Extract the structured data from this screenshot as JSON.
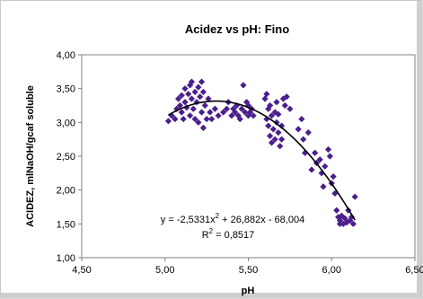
{
  "chart_data": {
    "type": "scatter",
    "title": "Acidez vs pH: Fino",
    "xlabel": "pH",
    "ylabel": "ACIDEZ, mlNaOH/gcaf soluble",
    "xlim": [
      4.5,
      6.5
    ],
    "ylim": [
      1.0,
      4.0
    ],
    "x_ticks": [
      "4,50",
      "5,00",
      "5,50",
      "6,00",
      "6,50"
    ],
    "y_ticks": [
      "1,00",
      "1,50",
      "2,00",
      "2,50",
      "3,00",
      "3,50",
      "4,00"
    ],
    "grid": false,
    "marker_color": "#4b1f8c",
    "trend_color": "#000000",
    "trendline": {
      "type": "polynomial",
      "coefficients": [
        -2.5331,
        26.882,
        -68.004
      ],
      "equation_prefix": "y = -2,5331x",
      "equation_suffix": " + 26,882x - 68,004",
      "exponent": "2",
      "r2_prefix": "R",
      "r2_suffix": " = 0,8517"
    },
    "points": [
      [
        5.02,
        3.02
      ],
      [
        5.04,
        3.1
      ],
      [
        5.06,
        3.05
      ],
      [
        5.07,
        3.2
      ],
      [
        5.08,
        3.35
      ],
      [
        5.09,
        3.25
      ],
      [
        5.1,
        3.4
      ],
      [
        5.1,
        3.15
      ],
      [
        5.11,
        3.05
      ],
      [
        5.12,
        3.3
      ],
      [
        5.12,
        3.5
      ],
      [
        5.13,
        3.22
      ],
      [
        5.14,
        3.42
      ],
      [
        5.15,
        3.1
      ],
      [
        5.15,
        3.55
      ],
      [
        5.16,
        3.35
      ],
      [
        5.16,
        3.6
      ],
      [
        5.17,
        3.2
      ],
      [
        5.18,
        3.45
      ],
      [
        5.18,
        3.05
      ],
      [
        5.19,
        3.3
      ],
      [
        5.2,
        3.0
      ],
      [
        5.2,
        3.52
      ],
      [
        5.21,
        3.38
      ],
      [
        5.22,
        3.15
      ],
      [
        5.22,
        3.6
      ],
      [
        5.23,
        3.45
      ],
      [
        5.23,
        2.92
      ],
      [
        5.24,
        3.25
      ],
      [
        5.25,
        3.05
      ],
      [
        5.26,
        3.35
      ],
      [
        5.27,
        3.15
      ],
      [
        5.28,
        3.05
      ],
      [
        5.3,
        3.2
      ],
      [
        5.32,
        3.1
      ],
      [
        5.35,
        3.15
      ],
      [
        5.37,
        3.2
      ],
      [
        5.38,
        3.3
      ],
      [
        5.4,
        3.1
      ],
      [
        5.41,
        3.2
      ],
      [
        5.42,
        3.15
      ],
      [
        5.43,
        3.25
      ],
      [
        5.44,
        3.1
      ],
      [
        5.45,
        3.05
      ],
      [
        5.46,
        3.2
      ],
      [
        5.47,
        3.55
      ],
      [
        5.48,
        3.15
      ],
      [
        5.49,
        3.3
      ],
      [
        5.5,
        3.1
      ],
      [
        5.5,
        3.25
      ],
      [
        5.51,
        3.15
      ],
      [
        5.52,
        3.2
      ],
      [
        5.53,
        3.1
      ],
      [
        5.6,
        3.35
      ],
      [
        5.61,
        3.42
      ],
      [
        5.61,
        3.05
      ],
      [
        5.62,
        2.95
      ],
      [
        5.62,
        3.2
      ],
      [
        5.63,
        2.8
      ],
      [
        5.63,
        3.25
      ],
      [
        5.64,
        3.1
      ],
      [
        5.64,
        2.7
      ],
      [
        5.65,
        2.9
      ],
      [
        5.66,
        3.15
      ],
      [
        5.66,
        2.75
      ],
      [
        5.67,
        3.0
      ],
      [
        5.67,
        3.3
      ],
      [
        5.68,
        2.85
      ],
      [
        5.68,
        3.12
      ],
      [
        5.69,
        2.65
      ],
      [
        5.7,
        2.95
      ],
      [
        5.7,
        2.75
      ],
      [
        5.71,
        3.35
      ],
      [
        5.72,
        3.25
      ],
      [
        5.73,
        3.38
      ],
      [
        5.75,
        3.2
      ],
      [
        5.8,
        2.9
      ],
      [
        5.82,
        3.05
      ],
      [
        5.83,
        2.75
      ],
      [
        5.84,
        2.55
      ],
      [
        5.86,
        2.85
      ],
      [
        5.88,
        2.3
      ],
      [
        5.9,
        2.55
      ],
      [
        5.91,
        2.4
      ],
      [
        5.93,
        2.45
      ],
      [
        5.94,
        2.25
      ],
      [
        5.95,
        2.05
      ],
      [
        5.96,
        2.35
      ],
      [
        5.98,
        2.6
      ],
      [
        5.99,
        2.5
      ],
      [
        6.0,
        2.1
      ],
      [
        6.01,
        2.2
      ],
      [
        6.02,
        1.95
      ],
      [
        6.03,
        1.7
      ],
      [
        6.04,
        1.6
      ],
      [
        6.05,
        1.5
      ],
      [
        6.05,
        1.55
      ],
      [
        6.06,
        1.62
      ],
      [
        6.07,
        1.5
      ],
      [
        6.08,
        1.58
      ],
      [
        6.09,
        1.52
      ],
      [
        6.1,
        1.7
      ],
      [
        6.11,
        1.55
      ],
      [
        6.12,
        1.6
      ],
      [
        6.13,
        1.5
      ],
      [
        6.14,
        1.9
      ]
    ]
  }
}
